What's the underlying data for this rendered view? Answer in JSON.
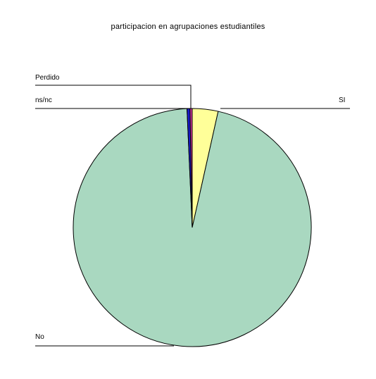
{
  "chart_data": {
    "type": "pie",
    "title": "participacion en agrupaciones estudiantiles",
    "categories": [
      "SI",
      "No",
      "ns/nc",
      "Perdido"
    ],
    "values": [
      3.5,
      95.8,
      0.4,
      0.3
    ],
    "colors": {
      "SI": "#ffff99",
      "No": "#a9d8c0",
      "ns/nc": "#1a1acc",
      "Perdido": "#cc3399"
    },
    "legend": "none"
  }
}
